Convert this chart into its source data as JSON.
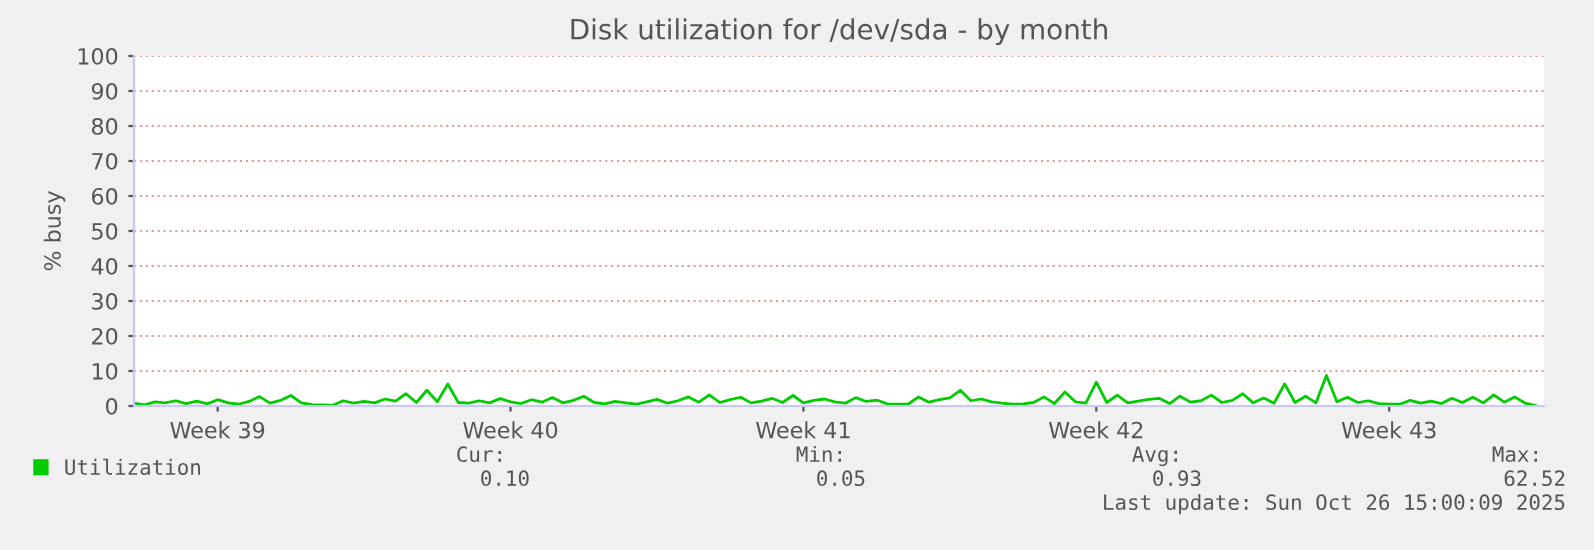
{
  "chart_data": {
    "type": "line",
    "title": "Disk utilization for /dev/sda - by month",
    "ylabel": "% busy",
    "ylim": [
      0,
      100
    ],
    "categories": [
      null,
      null,
      null,
      null,
      null,
      null,
      null,
      null,
      "Week 39",
      null,
      null,
      null,
      null,
      null,
      null,
      null,
      null,
      null,
      null,
      null,
      null,
      null,
      null,
      null,
      null,
      null,
      null,
      null,
      null,
      null,
      null,
      null,
      null,
      null,
      null,
      null,
      "Week 40",
      null,
      null,
      null,
      null,
      null,
      null,
      null,
      null,
      null,
      null,
      null,
      null,
      null,
      null,
      null,
      null,
      null,
      null,
      null,
      null,
      null,
      null,
      null,
      null,
      null,
      null,
      null,
      "Week 41",
      null,
      null,
      null,
      null,
      null,
      null,
      null,
      null,
      null,
      null,
      null,
      null,
      null,
      null,
      null,
      null,
      null,
      null,
      null,
      null,
      null,
      null,
      null,
      null,
      null,
      null,
      null,
      "Week 42",
      null,
      null,
      null,
      null,
      null,
      null,
      null,
      null,
      null,
      null,
      null,
      null,
      null,
      null,
      null,
      null,
      null,
      null,
      null,
      null,
      null,
      null,
      null,
      null,
      null,
      null,
      null,
      "Week 43",
      null,
      null,
      null,
      null,
      null,
      null,
      null,
      null,
      null,
      null,
      null,
      null,
      null,
      null
    ],
    "yticks": [
      0,
      10,
      20,
      30,
      40,
      50,
      60,
      70,
      80,
      90,
      100
    ],
    "grid": "y",
    "legend": "bottom left",
    "marker": "none",
    "line_style": "solid",
    "series": [
      {
        "name": "Utilization",
        "color": "#00cc00",
        "values": [
          0.8,
          0.3,
          1.2,
          0.9,
          1.5,
          0.7,
          1.4,
          0.6,
          1.8,
          0.9,
          0.5,
          1.3,
          2.7,
          0.8,
          1.6,
          3.0,
          0.9,
          0.4,
          0.3,
          0.2,
          1.5,
          0.8,
          1.3,
          0.9,
          2.0,
          1.4,
          3.5,
          1.0,
          4.5,
          1.2,
          6.3,
          1.0,
          0.8,
          1.5,
          0.9,
          2.1,
          1.2,
          0.7,
          1.8,
          1.1,
          2.4,
          0.9,
          1.6,
          2.8,
          1.0,
          0.6,
          1.3,
          0.9,
          0.5,
          1.2,
          1.9,
          0.8,
          1.5,
          2.6,
          1.1,
          3.2,
          1.0,
          1.8,
          2.5,
          0.9,
          1.4,
          2.2,
          1.0,
          3.0,
          0.9,
          1.6,
          2.0,
          1.2,
          0.8,
          2.4,
          1.3,
          1.7,
          0.6,
          0.5,
          0.5,
          2.6,
          1.1,
          1.8,
          2.3,
          4.5,
          1.5,
          2.0,
          1.2,
          0.8,
          0.5,
          0.6,
          1.0,
          2.6,
          0.7,
          4.0,
          1.2,
          0.8,
          6.8,
          1.0,
          3.1,
          0.9,
          1.4,
          1.9,
          2.2,
          0.7,
          2.8,
          1.1,
          1.5,
          3.1,
          1.0,
          1.6,
          3.5,
          0.9,
          2.3,
          0.8,
          6.3,
          1.0,
          2.8,
          0.9,
          8.7,
          1.2,
          2.5,
          1.0,
          1.5,
          0.7,
          0.5,
          0.5,
          1.6,
          0.8,
          1.4,
          0.7,
          2.2,
          1.0,
          2.5,
          0.9,
          3.2,
          1.1,
          2.6,
          0.8,
          0.1
        ]
      }
    ],
    "annotations": [
      "Cur:",
      "Min:",
      "Avg:",
      "Max:",
      "0.10",
      "0.05",
      "0.93",
      "62.52",
      "Last update: Sun Oct 26 15:00:09 2025"
    ]
  }
}
